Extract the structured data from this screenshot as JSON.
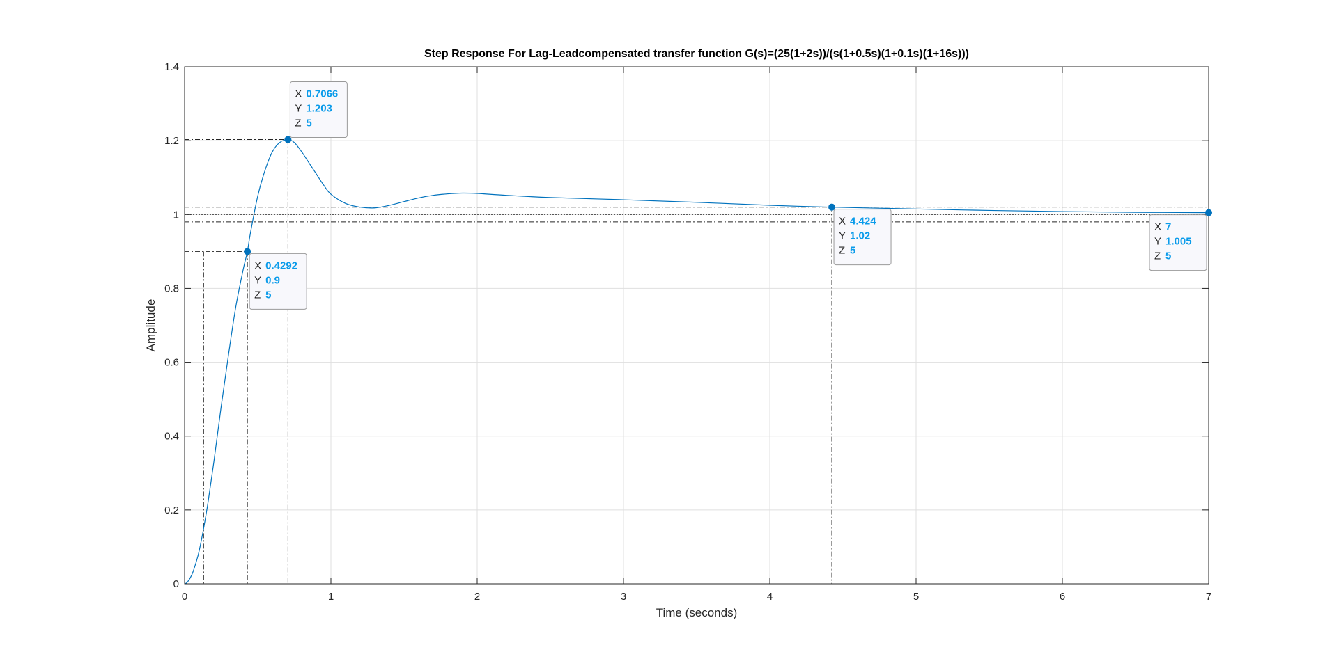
{
  "chart_data": {
    "type": "line",
    "title": "Step Response For Lag-Leadcompensated transfer function G(s)=(25(1+2s))/(s(1+0.5s)(1+0.1s)(1+16s)))",
    "xlabel": "Time (seconds)",
    "ylabel": "Amplitude",
    "xlim": [
      0,
      7
    ],
    "ylim": [
      0,
      1.4
    ],
    "xticks": [
      "0",
      "1",
      "2",
      "3",
      "4",
      "5",
      "6",
      "7"
    ],
    "yticks": [
      "0",
      "0.2",
      "0.4",
      "0.6",
      "0.8",
      "1",
      "1.2",
      "1.4"
    ],
    "grid": true,
    "line_color": "#0072bd",
    "steady_state": 1.0,
    "settling_band": [
      0.98,
      1.02
    ],
    "rise_time_start": 0.13,
    "series": [
      {
        "x": [
          0,
          0.02,
          0.05,
          0.08,
          0.1,
          0.13,
          0.16,
          0.2,
          0.25,
          0.3,
          0.35,
          0.4,
          0.4292,
          0.45,
          0.5,
          0.55,
          0.6,
          0.65,
          0.7066,
          0.75,
          0.8,
          0.85,
          0.9,
          0.95,
          1.0,
          1.1,
          1.2,
          1.3,
          1.4,
          1.5,
          1.6,
          1.7,
          1.8,
          1.9,
          2.0,
          2.2,
          2.5,
          3.0,
          3.5,
          4.0,
          4.424,
          5.0,
          5.5,
          6.0,
          6.5,
          7.0
        ],
        "y": [
          0,
          0.005,
          0.025,
          0.06,
          0.09,
          0.15,
          0.22,
          0.33,
          0.48,
          0.62,
          0.75,
          0.85,
          0.9,
          0.95,
          1.05,
          1.12,
          1.17,
          1.195,
          1.203,
          1.195,
          1.17,
          1.14,
          1.11,
          1.08,
          1.055,
          1.03,
          1.02,
          1.018,
          1.025,
          1.035,
          1.045,
          1.052,
          1.056,
          1.058,
          1.057,
          1.052,
          1.046,
          1.04,
          1.033,
          1.025,
          1.02,
          1.015,
          1.011,
          1.008,
          1.006,
          1.005
        ]
      }
    ],
    "datatips": [
      {
        "x": "0.7066",
        "y": "1.203",
        "z": "5",
        "xv": 0.7066,
        "yv": 1.203,
        "placement": "above-right"
      },
      {
        "x": "0.4292",
        "y": "0.9",
        "z": "5",
        "xv": 0.4292,
        "yv": 0.9,
        "placement": "below-right"
      },
      {
        "x": "4.424",
        "y": "1.02",
        "z": "5",
        "xv": 4.424,
        "yv": 1.02,
        "placement": "below-right"
      },
      {
        "x": "7",
        "y": "1.005",
        "z": "5",
        "xv": 7,
        "yv": 1.005,
        "placement": "below-left"
      }
    ],
    "tip_labels": {
      "x": "X",
      "y": "Y",
      "z": "Z"
    }
  }
}
